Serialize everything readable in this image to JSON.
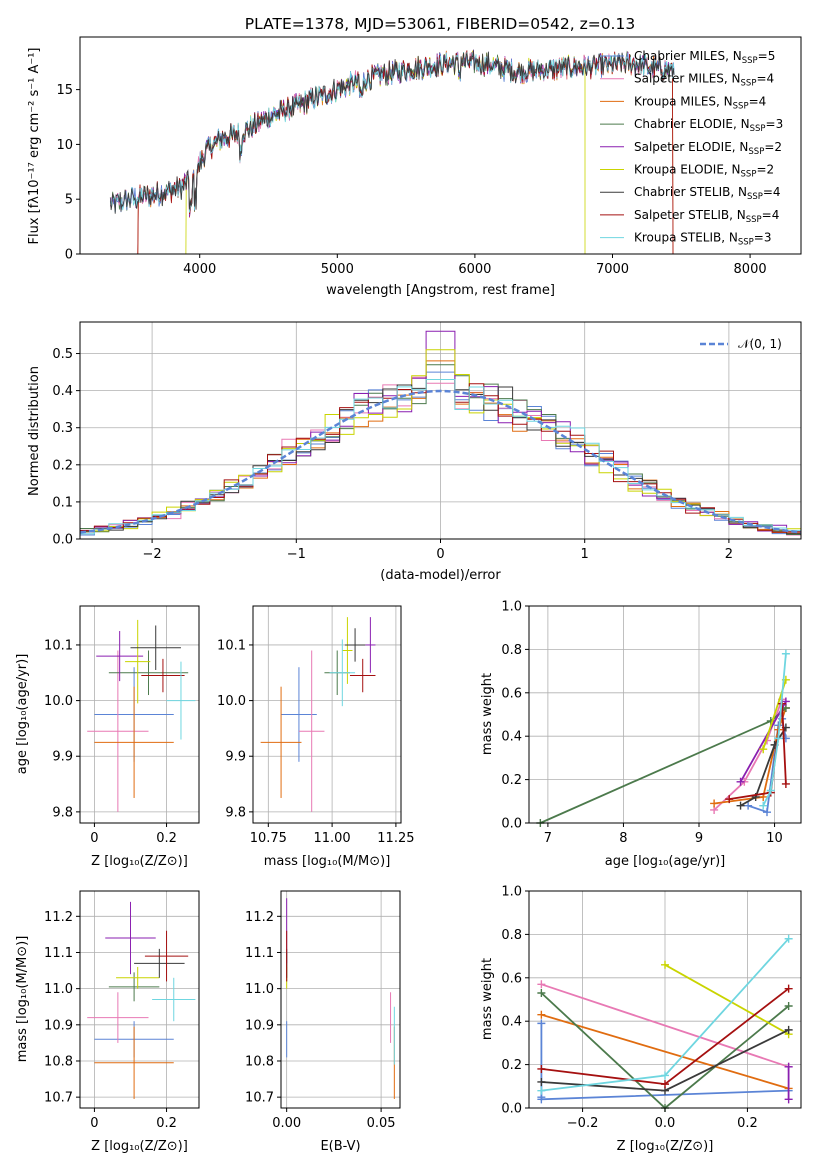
{
  "figure_title": "PLATE=1378, MJD=53061, FIBERID=0542, z=0.13",
  "models": [
    {
      "name": "Chabrier MILES, N$_{SSP}$=5",
      "label": "Chabrier MILES, N",
      "sub": "SSP",
      "suffix": "=5",
      "color": "#5b84d6"
    },
    {
      "name": "Salpeter MILES, N$_{SSP}$=4",
      "label": "Salpeter MILES, N",
      "sub": "SSP",
      "suffix": "=4",
      "color": "#e879b4"
    },
    {
      "name": "Kroupa MILES, N$_{SSP}$=4",
      "label": "Kroupa MILES, N",
      "sub": "SSP",
      "suffix": "=4",
      "color": "#e06c10"
    },
    {
      "name": "Chabrier ELODIE, N$_{SSP}$=3",
      "label": "Chabrier ELODIE, N",
      "sub": "SSP",
      "suffix": "=3",
      "color": "#4c7a4c"
    },
    {
      "name": "Salpeter ELODIE, N$_{SSP}$=2",
      "label": "Salpeter ELODIE, N",
      "sub": "SSP",
      "suffix": "=2",
      "color": "#8a1fb0"
    },
    {
      "name": "Kroupa ELODIE, N$_{SSP}$=2",
      "label": "Kroupa ELODIE, N",
      "sub": "SSP",
      "suffix": "=2",
      "color": "#c9d400"
    },
    {
      "name": "Chabrier STELIB, N$_{SSP}$=4",
      "label": "Chabrier STELIB, N",
      "sub": "SSP",
      "suffix": "=4",
      "color": "#3a3a3a"
    },
    {
      "name": "Salpeter STELIB, N$_{SSP}$=4",
      "label": "Salpeter STELIB, N",
      "sub": "SSP",
      "suffix": "=4",
      "color": "#a51010"
    },
    {
      "name": "Kroupa STELIB, N$_{SSP}$=3",
      "label": "Kroupa STELIB, N",
      "sub": "SSP",
      "suffix": "=3",
      "color": "#6fd6e0"
    }
  ],
  "chart_data": [
    {
      "id": "spectrum",
      "type": "line",
      "title": "PLATE=1378, MJD=53061, FIBERID=0542, z=0.13",
      "xlabel": "wavelength [Angstrom, rest frame]",
      "ylabel": "Flux [fλ10⁻¹⁷ erg cm⁻² s⁻¹ A⁻¹]",
      "xlim": [
        3130,
        8370
      ],
      "ylim": [
        0,
        19.8
      ],
      "xticks": [
        4000,
        5000,
        6000,
        7000,
        8000
      ],
      "yticks": [
        0,
        5,
        10,
        15
      ],
      "grid": false,
      "legend": "right",
      "continuum": {
        "x": [
          3350,
          3500,
          3700,
          3850,
          3950,
          4050,
          4150,
          4300,
          4500,
          4700,
          4900,
          5100,
          5300,
          5500,
          5700,
          5900,
          6100,
          6300,
          6500,
          6700,
          6900,
          7100,
          7300,
          7450
        ],
        "y": [
          4.5,
          5.0,
          5.5,
          6.0,
          7.0,
          9.5,
          10.5,
          11.0,
          12.5,
          13.5,
          14.5,
          15.5,
          16.3,
          16.8,
          17.2,
          17.6,
          17.3,
          16.6,
          16.8,
          17.0,
          17.2,
          17.4,
          17.0,
          16.8
        ]
      },
      "models": [
        {
          "model": 0,
          "xrange": [
            3350,
            7450
          ]
        },
        {
          "model": 1,
          "xrange": [
            3350,
            7450
          ]
        },
        {
          "model": 2,
          "xrange": [
            3550,
            7440
          ]
        },
        {
          "model": 3,
          "xrange": [
            3350,
            7450
          ]
        },
        {
          "model": 4,
          "xrange": [
            3350,
            7450
          ]
        },
        {
          "model": 5,
          "xrange": [
            3900,
            6800
          ]
        },
        {
          "model": 6,
          "xrange": [
            3350,
            7450
          ]
        },
        {
          "model": 7,
          "xrange": [
            3550,
            7440
          ]
        },
        {
          "model": 8,
          "xrange": [
            3350,
            7450
          ]
        }
      ]
    },
    {
      "id": "residual-hist",
      "type": "histogram",
      "xlabel": "(data-model)/error",
      "ylabel": "Normed distribution",
      "xlim": [
        -2.5,
        2.5
      ],
      "ylim": [
        0,
        0.585
      ],
      "xticks": [
        -2,
        -1,
        0,
        1,
        2
      ],
      "yticks": [
        0.0,
        0.1,
        0.2,
        0.3,
        0.4,
        0.5
      ],
      "grid": true,
      "legend": "top-right",
      "reference_curve": {
        "name": "𝒩(0, 1)",
        "mean": 0,
        "sigma": 1,
        "color": "#5b84d6"
      },
      "bin_width": 0.1
    },
    {
      "id": "z-age",
      "type": "scatter",
      "xlabel": "Z [log₁₀(Z/Z⊙)]",
      "ylabel": "age [log₁₀(age/yr)]",
      "xlim": [
        -0.04,
        0.29
      ],
      "ylim": [
        9.78,
        10.17
      ],
      "xticks": [
        0.0,
        0.2
      ],
      "yticks": [
        9.8,
        9.9,
        10.0,
        10.1
      ],
      "grid": true,
      "points": [
        {
          "model": 0,
          "x": 0.11,
          "xerr": 0.11,
          "y": 9.975,
          "yerr": 0.085
        },
        {
          "model": 1,
          "x": 0.065,
          "xerr": 0.085,
          "y": 9.945,
          "yerr": 0.145
        },
        {
          "model": 2,
          "x": 0.11,
          "xerr": 0.11,
          "y": 9.925,
          "yerr": 0.1
        },
        {
          "model": 3,
          "x": 0.15,
          "xerr": 0.11,
          "y": 10.05,
          "yerr": 0.04
        },
        {
          "model": 4,
          "x": 0.07,
          "xerr": 0.065,
          "y": 10.08,
          "yerr": 0.045
        },
        {
          "model": 5,
          "x": 0.12,
          "xerr": 0.035,
          "y": 10.07,
          "yerr": 0.075
        },
        {
          "model": 6,
          "x": 0.17,
          "xerr": 0.07,
          "y": 10.095,
          "yerr": 0.04
        },
        {
          "model": 7,
          "x": 0.19,
          "xerr": 0.06,
          "y": 10.045,
          "yerr": 0.03
        },
        {
          "model": 8,
          "x": 0.24,
          "xerr": 0.04,
          "y": 10.0,
          "yerr": 0.07
        }
      ]
    },
    {
      "id": "mass-age",
      "type": "scatter",
      "xlabel": "mass [log₁₀(M/M⊙)]",
      "ylabel": "",
      "xlim": [
        10.69,
        11.27
      ],
      "ylim": [
        9.78,
        10.17
      ],
      "xticks": [
        10.75,
        11.0,
        11.25
      ],
      "xtick_labels": [
        "10.75",
        "11.00",
        "11.25"
      ],
      "yticks": [
        9.8,
        9.9,
        10.0,
        10.1
      ],
      "grid": true,
      "points": [
        {
          "model": 0,
          "x": 10.87,
          "xerr": 0.07,
          "y": 9.975,
          "yerr": 0.085
        },
        {
          "model": 1,
          "x": 10.92,
          "xerr": 0.05,
          "y": 9.945,
          "yerr": 0.145
        },
        {
          "model": 2,
          "x": 10.8,
          "xerr": 0.08,
          "y": 9.925,
          "yerr": 0.1
        },
        {
          "model": 3,
          "x": 11.02,
          "xerr": 0.05,
          "y": 10.05,
          "yerr": 0.04
        },
        {
          "model": 4,
          "x": 11.15,
          "xerr": 0.02,
          "y": 10.1,
          "yerr": 0.05
        },
        {
          "model": 5,
          "x": 11.06,
          "xerr": 0.02,
          "y": 10.09,
          "yerr": 0.06
        },
        {
          "model": 6,
          "x": 11.09,
          "xerr": 0.04,
          "y": 10.1,
          "yerr": 0.03
        },
        {
          "model": 7,
          "x": 11.12,
          "xerr": 0.05,
          "y": 10.045,
          "yerr": 0.03
        },
        {
          "model": 8,
          "x": 11.04,
          "xerr": 0.05,
          "y": 10.05,
          "yerr": 0.06
        }
      ]
    },
    {
      "id": "age-weight",
      "type": "line",
      "xlabel": "age [log₁₀(age/yr)]",
      "ylabel": "mass weight",
      "xlim": [
        6.75,
        10.35
      ],
      "ylim": [
        0,
        1
      ],
      "xticks": [
        7,
        8,
        9,
        10
      ],
      "yticks": [
        0.0,
        0.2,
        0.4,
        0.6,
        0.8,
        1.0
      ],
      "grid": true,
      "series": [
        {
          "model": 0,
          "x": [
            9.65,
            9.9,
            10.05,
            10.1,
            10.15
          ],
          "y": [
            0.08,
            0.05,
            0.45,
            0.48,
            0.39
          ]
        },
        {
          "model": 1,
          "x": [
            9.2,
            9.6,
            9.9,
            10.1
          ],
          "y": [
            0.06,
            0.19,
            0.38,
            0.57
          ]
        },
        {
          "model": 2,
          "x": [
            9.2,
            9.85,
            10.05,
            10.15
          ],
          "y": [
            0.09,
            0.12,
            0.43,
            0.53
          ]
        },
        {
          "model": 3,
          "x": [
            6.9,
            9.95,
            10.15
          ],
          "y": [
            0.0,
            0.47,
            0.53
          ]
        },
        {
          "model": 4,
          "x": [
            9.55,
            10.15
          ],
          "y": [
            0.19,
            0.56
          ]
        },
        {
          "model": 5,
          "x": [
            9.85,
            10.15
          ],
          "y": [
            0.34,
            0.66
          ]
        },
        {
          "model": 6,
          "x": [
            9.55,
            9.75,
            10.0,
            10.15
          ],
          "y": [
            0.08,
            0.12,
            0.36,
            0.44
          ]
        },
        {
          "model": 7,
          "x": [
            9.4,
            9.95,
            10.1,
            10.15
          ],
          "y": [
            0.11,
            0.14,
            0.55,
            0.18
          ]
        },
        {
          "model": 8,
          "x": [
            9.85,
            9.95,
            10.05,
            10.15
          ],
          "y": [
            0.08,
            0.15,
            0.39,
            0.78
          ]
        }
      ]
    },
    {
      "id": "z-mass",
      "type": "scatter",
      "xlabel": "Z [log₁₀(Z/Z⊙)]",
      "ylabel": "mass [log₁₀(M/M⊙)]",
      "xlim": [
        -0.04,
        0.29
      ],
      "ylim": [
        10.67,
        11.27
      ],
      "xticks": [
        0.0,
        0.2
      ],
      "yticks": [
        10.7,
        10.8,
        10.9,
        11.0,
        11.1,
        11.2
      ],
      "grid": true,
      "points": [
        {
          "model": 0,
          "x": 0.11,
          "xerr": 0.11,
          "y": 10.86,
          "yerr": 0.05
        },
        {
          "model": 1,
          "x": 0.065,
          "xerr": 0.085,
          "y": 10.92,
          "yerr": 0.07
        },
        {
          "model": 2,
          "x": 0.11,
          "xerr": 0.11,
          "y": 10.795,
          "yerr": 0.1
        },
        {
          "model": 3,
          "x": 0.11,
          "xerr": 0.07,
          "y": 11.005,
          "yerr": 0.04
        },
        {
          "model": 4,
          "x": 0.1,
          "xerr": 0.07,
          "y": 11.14,
          "yerr": 0.1
        },
        {
          "model": 5,
          "x": 0.12,
          "xerr": 0.06,
          "y": 11.03,
          "yerr": 0.03
        },
        {
          "model": 6,
          "x": 0.18,
          "xerr": 0.07,
          "y": 11.07,
          "yerr": 0.04
        },
        {
          "model": 7,
          "x": 0.2,
          "xerr": 0.06,
          "y": 11.09,
          "yerr": 0.07
        },
        {
          "model": 8,
          "x": 0.22,
          "xerr": 0.06,
          "y": 10.97,
          "yerr": 0.06
        }
      ]
    },
    {
      "id": "ebv-mass",
      "type": "scatter",
      "xlabel": "E(B-V)",
      "ylabel": "",
      "xlim": [
        -0.003,
        0.06
      ],
      "ylim": [
        10.67,
        11.27
      ],
      "xticks": [
        0.0,
        0.05
      ],
      "xtick_labels": [
        "0.00",
        "0.05"
      ],
      "yticks": [
        10.7,
        10.8,
        10.9,
        11.0,
        11.1,
        11.2
      ],
      "grid": true,
      "points": [
        {
          "model": 0,
          "x": 0.0,
          "xerr": 0,
          "y": 10.86,
          "yerr": 0.05
        },
        {
          "model": 1,
          "x": 0.055,
          "xerr": 0,
          "y": 10.92,
          "yerr": 0.07
        },
        {
          "model": 2,
          "x": 0.057,
          "xerr": 0,
          "y": 10.795,
          "yerr": 0.1
        },
        {
          "model": 3,
          "x": 0.0,
          "xerr": 0,
          "y": 11.06,
          "yerr": 0.04
        },
        {
          "model": 4,
          "x": 0.0,
          "xerr": 0,
          "y": 11.16,
          "yerr": 0.09
        },
        {
          "model": 5,
          "x": 0.0,
          "xerr": 0,
          "y": 11.03,
          "yerr": 0.03
        },
        {
          "model": 6,
          "x": 0.0,
          "xerr": 0,
          "y": 11.07,
          "yerr": 0.04
        },
        {
          "model": 7,
          "x": 0.0,
          "xerr": 0,
          "y": 11.09,
          "yerr": 0.07
        },
        {
          "model": 8,
          "x": 0.057,
          "xerr": 0,
          "y": 10.87,
          "yerr": 0.08
        }
      ]
    },
    {
      "id": "z-weight",
      "type": "line",
      "xlabel": "Z [log₁₀(Z/Z⊙)]",
      "ylabel": "mass weight",
      "xlim": [
        -0.33,
        0.33
      ],
      "ylim": [
        0,
        1
      ],
      "xticks": [
        -0.2,
        0.0,
        0.2
      ],
      "xtick_labels": [
        "−0.2",
        "0.0",
        "0.2"
      ],
      "yticks": [
        0.0,
        0.2,
        0.4,
        0.6,
        0.8,
        1.0
      ],
      "grid": true,
      "series": [
        {
          "model": 0,
          "x": [
            -0.3,
            -0.3,
            -0.3,
            0.3
          ],
          "y": [
            0.39,
            0.05,
            0.04,
            0.08
          ]
        },
        {
          "model": 1,
          "x": [
            -0.3,
            0.3
          ],
          "y": [
            0.57,
            0.19
          ]
        },
        {
          "model": 2,
          "x": [
            -0.3,
            0.3
          ],
          "y": [
            0.43,
            0.09
          ]
        },
        {
          "model": 3,
          "x": [
            -0.3,
            0.0,
            0.3
          ],
          "y": [
            0.53,
            0.0,
            0.47
          ]
        },
        {
          "model": 4,
          "x": [
            0.3,
            0.3
          ],
          "y": [
            0.04,
            0.19
          ]
        },
        {
          "model": 5,
          "x": [
            0.0,
            0.3
          ],
          "y": [
            0.66,
            0.34
          ]
        },
        {
          "model": 6,
          "x": [
            -0.3,
            0.0,
            0.3
          ],
          "y": [
            0.12,
            0.08,
            0.36
          ]
        },
        {
          "model": 7,
          "x": [
            -0.3,
            0.0,
            0.3
          ],
          "y": [
            0.18,
            0.11,
            0.55
          ]
        },
        {
          "model": 8,
          "x": [
            -0.3,
            0.0,
            0.3
          ],
          "y": [
            0.08,
            0.15,
            0.78
          ]
        }
      ]
    }
  ]
}
